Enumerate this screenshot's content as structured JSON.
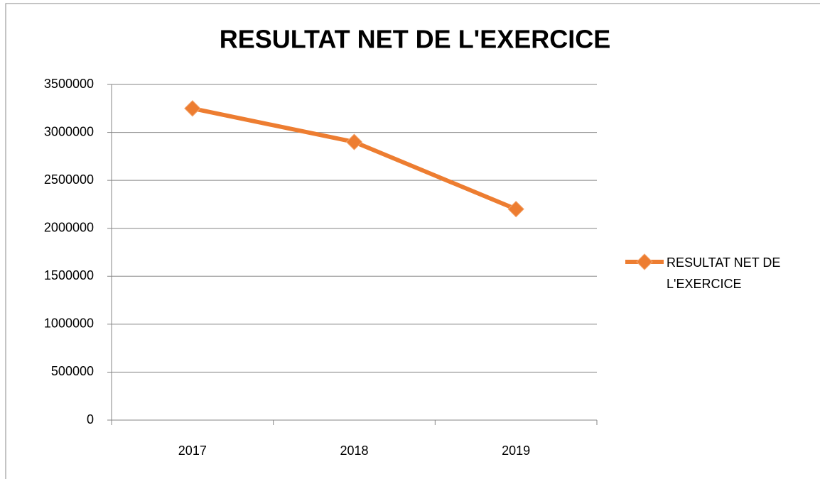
{
  "chart_data": {
    "type": "line",
    "title": "RESULTAT NET DE L'EXERCICE",
    "categories": [
      "2017",
      "2018",
      "2019"
    ],
    "series": [
      {
        "name": "RESULTAT NET DE L'EXERCICE",
        "color": "#ed7d31",
        "values": [
          3250000,
          2900000,
          2200000
        ]
      }
    ],
    "ylim": [
      0,
      3500000
    ],
    "yticks": [
      0,
      500000,
      1000000,
      1500000,
      2000000,
      2500000,
      3000000,
      3500000
    ],
    "grid": true,
    "legend": "right"
  }
}
